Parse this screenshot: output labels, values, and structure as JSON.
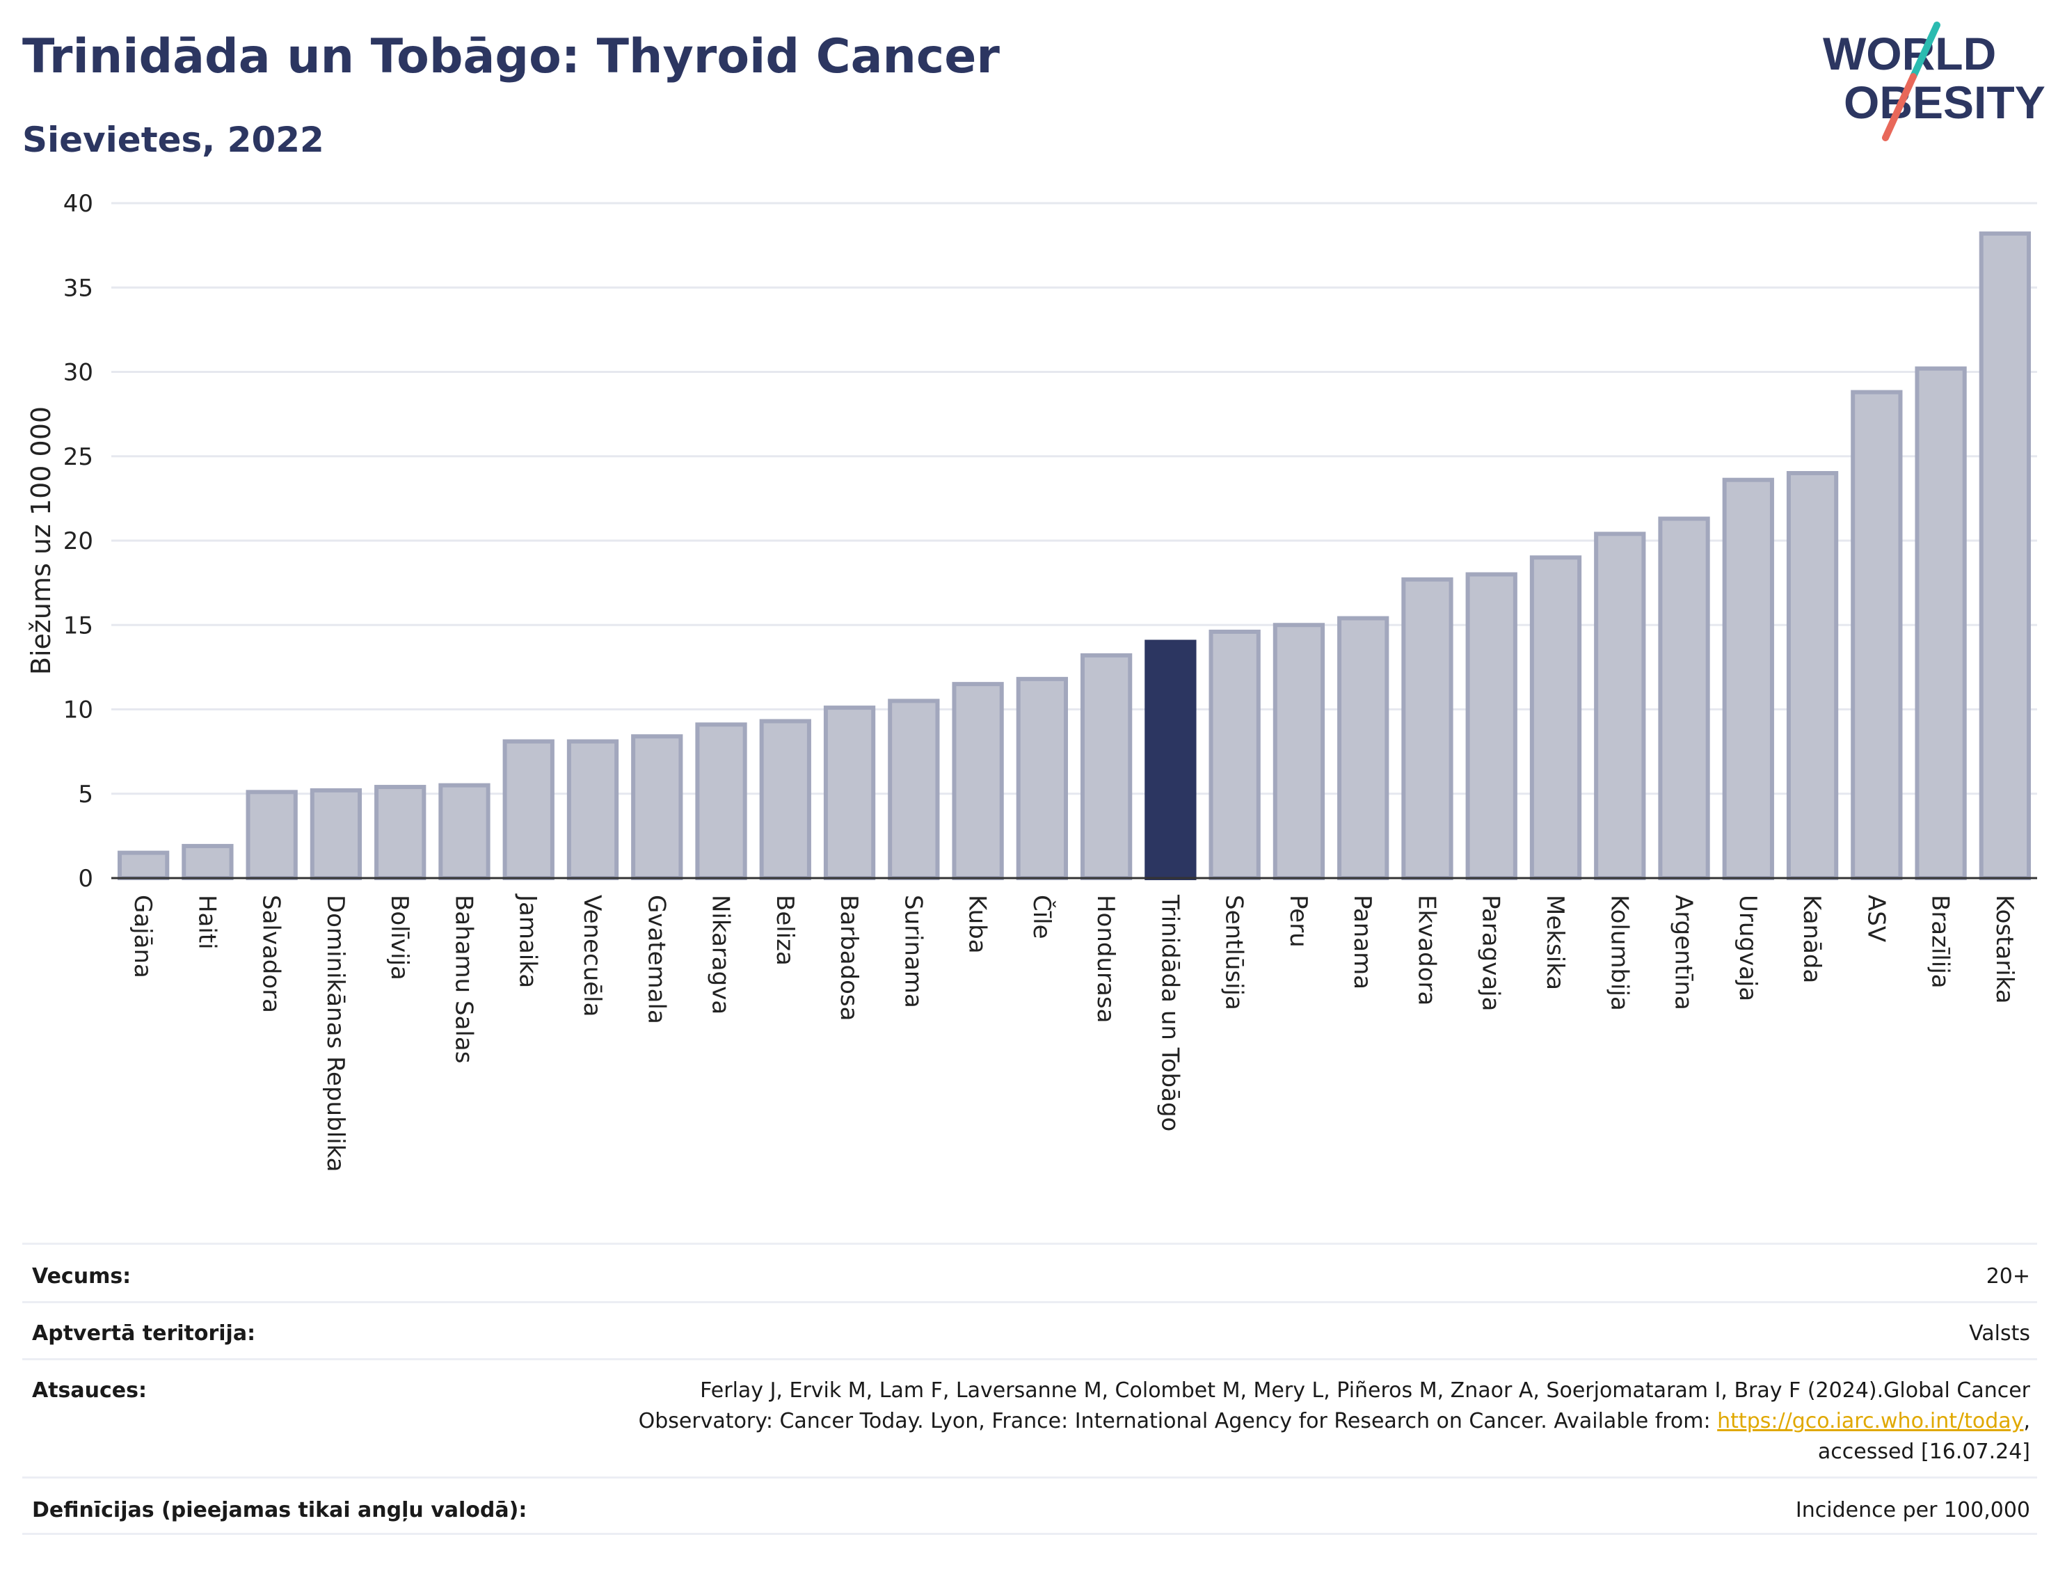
{
  "header": {
    "title": "Trinidāda un Tobāgo: Thyroid Cancer",
    "subtitle": "Sievietes, 2022"
  },
  "logo": {
    "line1": "WORLD",
    "line2": "OBESITY"
  },
  "colors": {
    "highlight": "#2c3661",
    "bar": "#bfc2cf",
    "bar_edge": "#a2a7bd",
    "title": "#2c3661"
  },
  "chart_data": {
    "type": "bar",
    "ylabel": "Biežums uz 100 000",
    "xlabel": "",
    "ylim": [
      0,
      40
    ],
    "yticks": [
      0,
      5,
      10,
      15,
      20,
      25,
      30,
      35,
      40
    ],
    "grid": true,
    "highlight": "Trinidāda un Tobāgo",
    "categories": [
      "Gajāna",
      "Haiti",
      "Salvadora",
      "Dominikānas Republika",
      "Bolīvija",
      "Bahamu Salas",
      "Jamaika",
      "Venecuēla",
      "Gvatemala",
      "Nikaragva",
      "Beliza",
      "Barbadosa",
      "Surinama",
      "Kuba",
      "Čīle",
      "Hondurasa",
      "Trinidāda un Tobāgo",
      "Sentlūsija",
      "Peru",
      "Panama",
      "Ekvadora",
      "Paragvaja",
      "Meksika",
      "Kolumbija",
      "Argentīna",
      "Urugvaja",
      "Kanāda",
      "ASV",
      "Brazīlija",
      "Kostarika"
    ],
    "values": [
      1.5,
      1.9,
      5.1,
      5.2,
      5.4,
      5.5,
      8.1,
      8.1,
      8.4,
      9.1,
      9.3,
      10.1,
      10.5,
      11.5,
      11.8,
      13.2,
      14.0,
      14.6,
      15.0,
      15.4,
      17.7,
      18.0,
      19.0,
      20.4,
      21.3,
      23.6,
      24.0,
      28.8,
      30.2,
      38.2
    ]
  },
  "meta": {
    "age_label": "Vecums:",
    "age_value": "20+",
    "coverage_label": "Aptvertā teritorija:",
    "coverage_value": "Valsts",
    "references_label": "Atsauces:",
    "references_line1": "Ferlay J, Ervik M, Lam F, Laversanne M, Colombet M, Mery L, Piñeros M, Znaor A, Soerjomataram I, Bray F (2024).Global Cancer",
    "references_line2": "Observatory: Cancer Today. Lyon, France: International Agency for Research on Cancer. Available from: ",
    "references_link": "https://gco.iarc.who.int/today",
    "references_line2_end": ",",
    "references_line3": "accessed [16.07.24]",
    "definitions_label": "Definīcijas (pieejamas tikai angļu valodā):",
    "definitions_value": "Incidence per 100,000"
  }
}
